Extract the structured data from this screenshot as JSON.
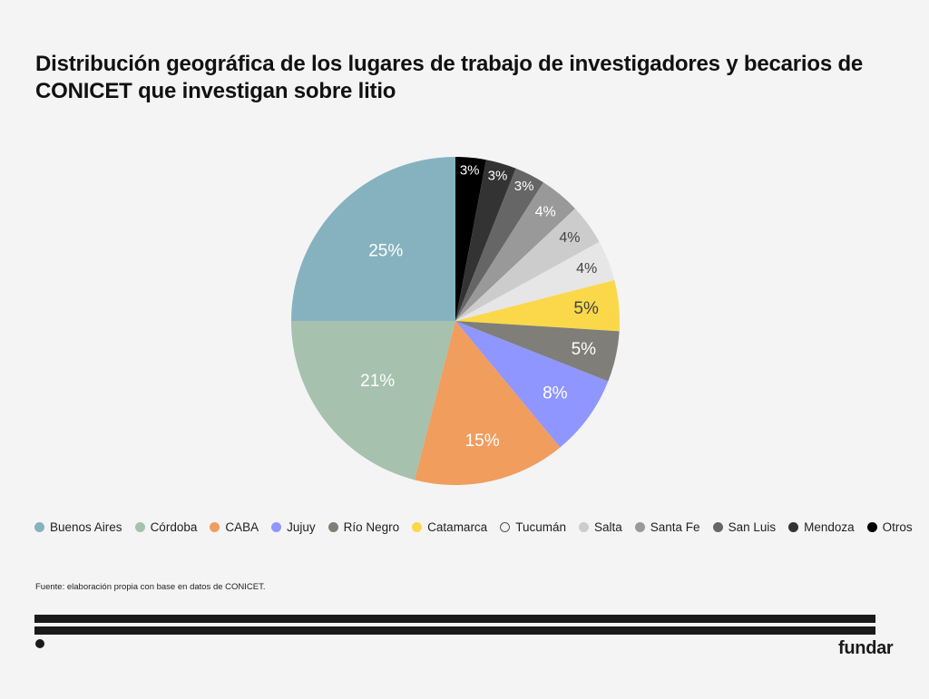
{
  "chart_data": {
    "type": "pie",
    "title": "Distribución geográfica de los lugares de trabajo de investigadores y becarios de CONICET que investigan sobre litio",
    "start": "top",
    "direction": "clockwise",
    "slices": [
      {
        "label": "Otros",
        "value": 3,
        "display": "3%",
        "color": "#000000",
        "text_color": "#ffffff"
      },
      {
        "label": "Mendoza",
        "value": 3,
        "display": "3%",
        "color": "#333333",
        "text_color": "#ffffff"
      },
      {
        "label": "San Luis",
        "value": 3,
        "display": "3%",
        "color": "#666666",
        "text_color": "#ffffff"
      },
      {
        "label": "Santa Fe",
        "value": 4,
        "display": "4%",
        "color": "#999999",
        "text_color": "#ffffff"
      },
      {
        "label": "Salta",
        "value": 4,
        "display": "4%",
        "color": "#cccccc",
        "text_color": "#444444"
      },
      {
        "label": "Tucumán",
        "value": 4,
        "display": "4%",
        "color": "#e6e6e6",
        "text_color": "#444444"
      },
      {
        "label": "Catamarca",
        "value": 5,
        "display": "5%",
        "color": "#fad84a",
        "text_color": "#444444"
      },
      {
        "label": "Río Negro",
        "value": 5,
        "display": "5%",
        "color": "#7f7e78",
        "text_color": "#ffffff"
      },
      {
        "label": "Jujuy",
        "value": 8,
        "display": "8%",
        "color": "#8f96ff",
        "text_color": "#ffffff"
      },
      {
        "label": "CABA",
        "value": 15,
        "display": "15%",
        "color": "#f09d5e",
        "text_color": "#ffffff"
      },
      {
        "label": "Córdoba",
        "value": 21,
        "display": "21%",
        "color": "#a6c1ad",
        "text_color": "#ffffff"
      },
      {
        "label": "Buenos Aires",
        "value": 25,
        "display": "25%",
        "color": "#86b2c0",
        "text_color": "#ffffff"
      }
    ],
    "legend": {
      "placement": "bottom",
      "order": [
        "Buenos Aires",
        "Córdoba",
        "CABA",
        "Jujuy",
        "Río Negro",
        "Catamarca",
        "Tucumán",
        "Salta",
        "Santa Fe",
        "San Luis",
        "Mendoza",
        "Otros"
      ]
    }
  },
  "source": "Fuente: elaboración propia con base en datos de CONICET.",
  "brand": "fundar"
}
